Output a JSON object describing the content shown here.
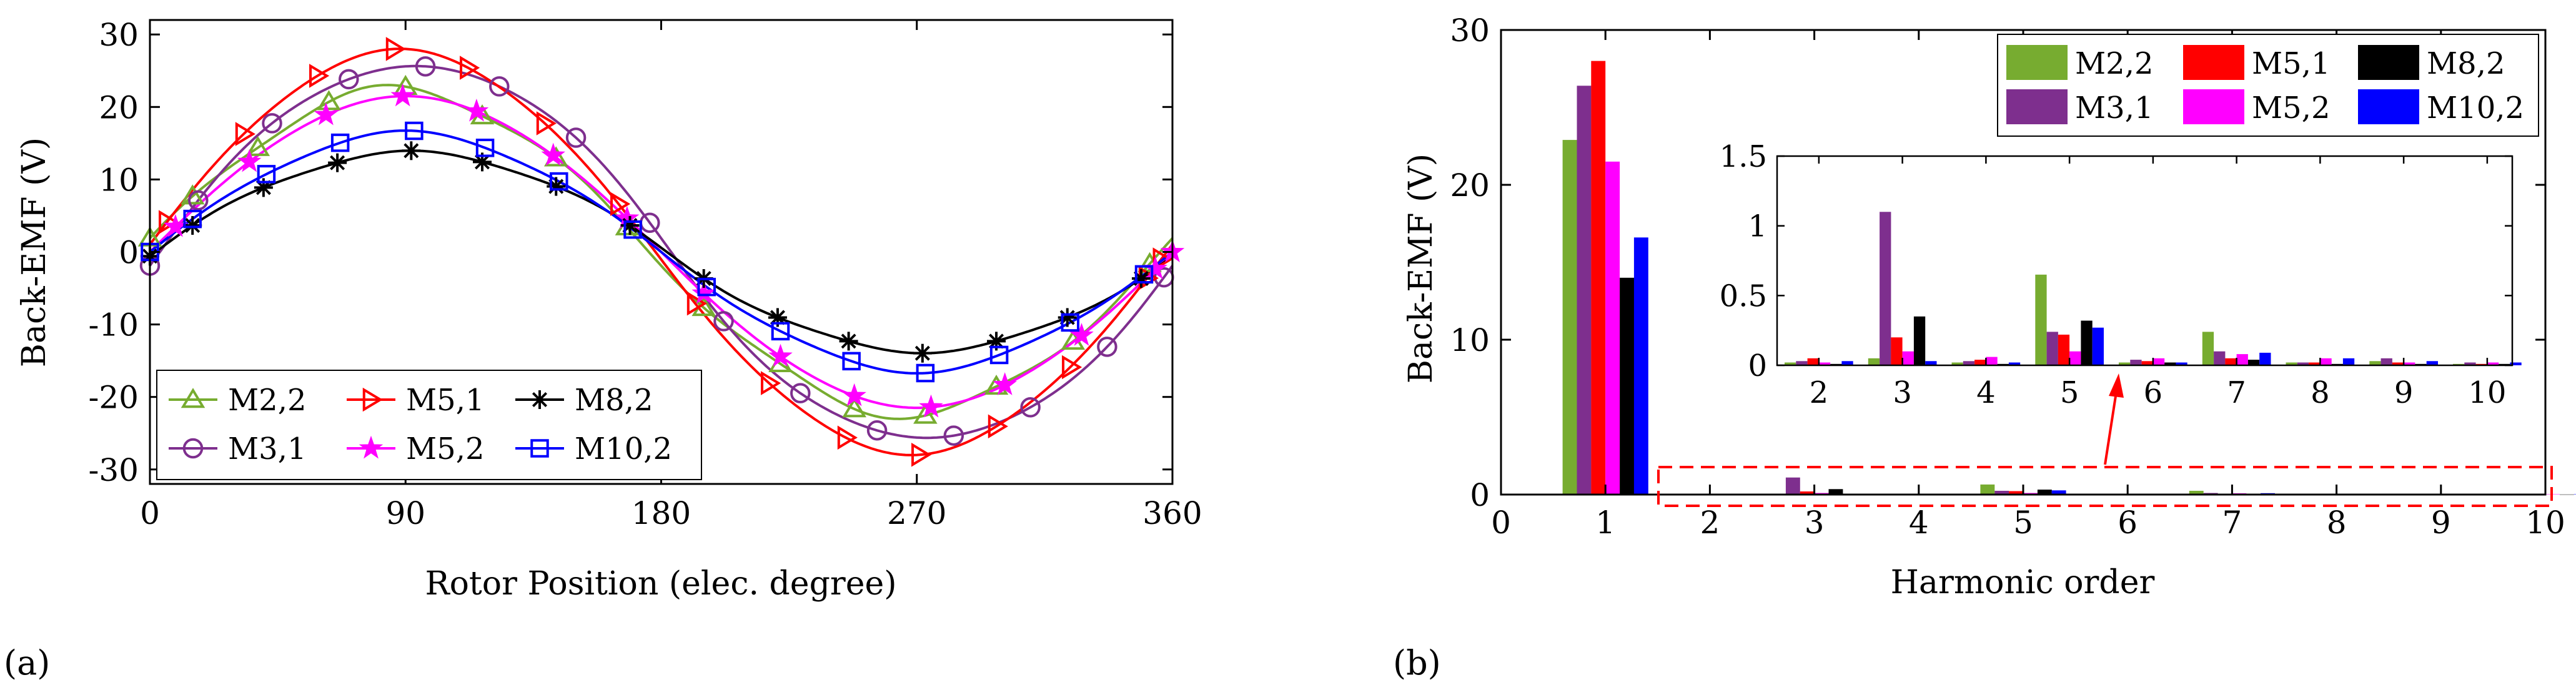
{
  "panel_labels": {
    "a": "(a)",
    "b": "(b)"
  },
  "chart_data": [
    {
      "id": "a",
      "type": "line",
      "title": "",
      "xlabel": "Rotor Position (elec. degree)",
      "ylabel": "Back-EMF (V)",
      "xlim": [
        0,
        360
      ],
      "ylim": [
        -32,
        32
      ],
      "xticks": [
        0,
        90,
        180,
        270,
        360
      ],
      "yticks": [
        30,
        20,
        10,
        0,
        -10,
        -20,
        -30
      ],
      "ytick_labels": [
        "30",
        "20",
        "10",
        "0",
        "-10",
        "-20",
        "-30"
      ],
      "grid": false,
      "legend_position": "bottom-left",
      "series": [
        {
          "name": "M2,2",
          "color": "#77ac30",
          "marker": "triangle-up",
          "amplitude": 22.5,
          "phase_deg": -3.5,
          "offset": 0,
          "h3": 0.05,
          "h5": 0.65,
          "h5_phase": 35,
          "marker_x": [
            0,
            15,
            38,
            63,
            90,
            117,
            143,
            168,
            195,
            222,
            248,
            273,
            298,
            325,
            352
          ]
        },
        {
          "name": "M3,1",
          "color": "#7e2f8e",
          "marker": "circle",
          "amplitude": 26.5,
          "phase_deg": 3.5,
          "offset": 0,
          "h3": 1.1,
          "h5": 0.24,
          "h5_phase": 0,
          "marker_x": [
            0,
            17,
            43,
            70,
            97,
            123,
            150,
            176,
            202,
            229,
            256,
            283,
            310,
            337,
            357
          ]
        },
        {
          "name": "M5,1",
          "color": "#ff0000",
          "marker": "triangle-right",
          "amplitude": 28.0,
          "phase_deg": -2.0,
          "offset": 0,
          "h3": 0.2,
          "h5": 0.22,
          "h5_phase": 0,
          "marker_x": [
            6,
            33,
            59,
            86,
            112,
            139,
            165,
            192,
            218,
            245,
            271,
            298,
            324,
            351,
            356
          ]
        },
        {
          "name": "M5,2",
          "color": "#ff00ff",
          "marker": "star",
          "amplitude": 21.5,
          "phase_deg": 0,
          "offset": 0,
          "h3": 0.1,
          "h5": 0.1,
          "h5_phase": 0,
          "marker_x": [
            9,
            35,
            62,
            89,
            115,
            142,
            168,
            195,
            222,
            248,
            275,
            301,
            328,
            354,
            360
          ]
        },
        {
          "name": "M8,2",
          "color": "#000000",
          "marker": "asterisk",
          "amplitude": 14.0,
          "phase_deg": 2.0,
          "offset": 0,
          "h3": 0.35,
          "h5": 0.32,
          "h5_phase": 0,
          "marker_x": [
            0,
            15,
            40,
            66,
            92,
            117,
            143,
            169,
            195,
            221,
            246,
            272,
            298,
            323,
            349
          ]
        },
        {
          "name": "M10,2",
          "color": "#0000ff",
          "marker": "square",
          "amplitude": 16.5,
          "phase_deg": 0,
          "offset": 0,
          "h3": 0.03,
          "h5": 0.27,
          "h5_phase": 0,
          "marker_x": [
            0,
            15,
            41,
            67,
            93,
            118,
            144,
            170,
            196,
            222,
            247,
            273,
            299,
            324,
            350
          ]
        }
      ]
    },
    {
      "id": "b",
      "type": "bar",
      "title": "",
      "xlabel": "Harmonic order",
      "ylabel": "Back-EMF (V)",
      "xlim": [
        0,
        10
      ],
      "ylim": [
        0,
        30
      ],
      "xticks": [
        0,
        1,
        2,
        3,
        4,
        5,
        6,
        7,
        8,
        9,
        10
      ],
      "yticks": [
        0,
        10,
        20,
        30
      ],
      "grid": false,
      "legend_position": "top-right",
      "categories": [
        1,
        2,
        3,
        4,
        5,
        6,
        7,
        8,
        9,
        10
      ],
      "series": [
        {
          "name": "M2,2",
          "color": "#77ac30",
          "values": [
            22.9,
            0.02,
            0.05,
            0.02,
            0.65,
            0.02,
            0.24,
            0.02,
            0.03,
            0.01
          ]
        },
        {
          "name": "M3,1",
          "color": "#7e2f8e",
          "values": [
            26.4,
            0.03,
            1.1,
            0.03,
            0.24,
            0.04,
            0.1,
            0.02,
            0.05,
            0.02
          ]
        },
        {
          "name": "M5,1",
          "color": "#ff0000",
          "values": [
            28.0,
            0.05,
            0.2,
            0.04,
            0.22,
            0.03,
            0.05,
            0.02,
            0.02,
            0.01
          ]
        },
        {
          "name": "M5,2",
          "color": "#ff00ff",
          "values": [
            21.5,
            0.02,
            0.1,
            0.06,
            0.1,
            0.05,
            0.08,
            0.05,
            0.02,
            0.02
          ]
        },
        {
          "name": "M8,2",
          "color": "#000000",
          "values": [
            14.0,
            0.01,
            0.35,
            0.01,
            0.32,
            0.02,
            0.04,
            0.01,
            0.01,
            0.01
          ]
        },
        {
          "name": "M10,2",
          "color": "#0000ff",
          "values": [
            16.6,
            0.03,
            0.03,
            0.02,
            0.27,
            0.02,
            0.09,
            0.05,
            0.03,
            0.02
          ]
        }
      ],
      "inset": {
        "xlim": [
          1.5,
          10.3
        ],
        "ylim": [
          0,
          1.5
        ],
        "xticks": [
          2,
          3,
          4,
          5,
          6,
          7,
          8,
          9,
          10
        ],
        "yticks": [
          0,
          0.5,
          1,
          1.5
        ],
        "ytick_labels": [
          "0",
          "0.5",
          "1",
          "1.5"
        ]
      }
    }
  ]
}
